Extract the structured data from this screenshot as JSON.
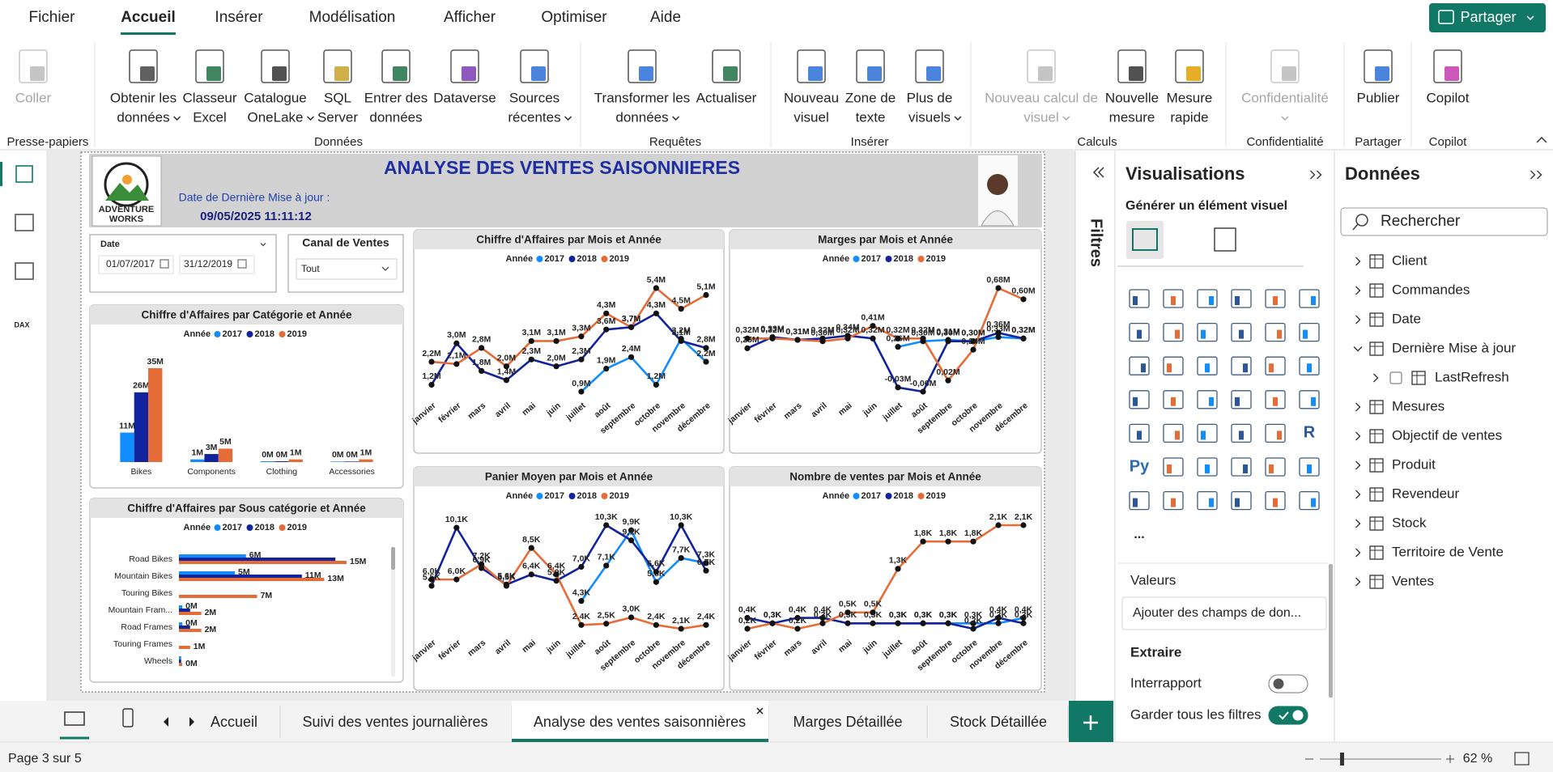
{
  "menu": {
    "items": [
      "Fichier",
      "Accueil",
      "Insérer",
      "Modélisation",
      "Afficher",
      "Optimiser",
      "Aide"
    ],
    "active": 1,
    "share": "Partager"
  },
  "ribbon": {
    "buttons": [
      {
        "lines": [
          "Coller"
        ],
        "disabled": true,
        "dropdown": false
      },
      {
        "lines": [
          "Obtenir les",
          "données"
        ],
        "disabled": false,
        "dropdown": true
      },
      {
        "lines": [
          "Classeur",
          "Excel"
        ],
        "disabled": false,
        "dropdown": false
      },
      {
        "lines": [
          "Catalogue",
          "OneLake"
        ],
        "disabled": false,
        "dropdown": true
      },
      {
        "lines": [
          "SQL",
          "Server"
        ],
        "disabled": false,
        "dropdown": false
      },
      {
        "lines": [
          "Entrer des",
          "données"
        ],
        "disabled": false,
        "dropdown": false
      },
      {
        "lines": [
          "Dataverse"
        ],
        "disabled": false,
        "dropdown": false
      },
      {
        "lines": [
          "Sources",
          "récentes"
        ],
        "disabled": false,
        "dropdown": true
      },
      {
        "lines": [
          "Transformer les",
          "données"
        ],
        "disabled": false,
        "dropdown": true
      },
      {
        "lines": [
          "Actualiser"
        ],
        "disabled": false,
        "dropdown": false
      },
      {
        "lines": [
          "Nouveau",
          "visuel"
        ],
        "disabled": false,
        "dropdown": false
      },
      {
        "lines": [
          "Zone de",
          "texte"
        ],
        "disabled": false,
        "dropdown": false
      },
      {
        "lines": [
          "Plus de",
          "visuels"
        ],
        "disabled": false,
        "dropdown": true
      },
      {
        "lines": [
          "Nouveau calcul de",
          "visuel"
        ],
        "disabled": true,
        "dropdown": true
      },
      {
        "lines": [
          "Nouvelle",
          "mesure"
        ],
        "disabled": false,
        "dropdown": false
      },
      {
        "lines": [
          "Mesure",
          "rapide"
        ],
        "disabled": false,
        "dropdown": false
      },
      {
        "lines": [
          "Confidentialité"
        ],
        "disabled": true,
        "dropdown": true
      },
      {
        "lines": [
          "Publier"
        ],
        "disabled": false,
        "dropdown": false
      },
      {
        "lines": [
          "Copilot"
        ],
        "disabled": false,
        "dropdown": false
      }
    ],
    "groups": [
      "Presse-papiers",
      "Données",
      "Requêtes",
      "Insérer",
      "Calculs",
      "Confidentialité",
      "Partager",
      "Copilot"
    ]
  },
  "nav": {
    "dax": "DAX"
  },
  "report": {
    "title": "ANALYSE DES VENTES SAISONNIERES",
    "logo": [
      "ADVENTURE",
      "WORKS"
    ],
    "update_label": "Date de Dernière Mise à jour :",
    "update_value": "09/05/2025 11:11:12",
    "date_slicer": {
      "title": "Date",
      "from": "01/07/2017",
      "to": "31/12/2019"
    },
    "channel_slicer": {
      "title": "Canal de Ventes",
      "value": "Tout"
    }
  },
  "chart_data": [
    {
      "type": "bar",
      "title": "Chiffre d'Affaires par Catégorie et Année",
      "legend_title": "Année",
      "categories": [
        "Bikes",
        "Components",
        "Clothing",
        "Accessories"
      ],
      "series": [
        {
          "name": "2017",
          "color": "#118DFF",
          "values": [
            11,
            1,
            0.3,
            0.2
          ],
          "value_labels": [
            "11M",
            "1M",
            "0M",
            "0M"
          ]
        },
        {
          "name": "2018",
          "color": "#12239E",
          "values": [
            26,
            3,
            0.3,
            0.2
          ],
          "value_labels": [
            "26M",
            "3M",
            "0M",
            "0M"
          ]
        },
        {
          "name": "2019",
          "color": "#E66C37",
          "values": [
            35,
            5,
            1,
            1
          ],
          "value_labels": [
            "35M",
            "5M",
            "1M",
            "1M"
          ]
        }
      ]
    },
    {
      "type": "hbar",
      "title": "Chiffre d'Affaires par Sous catégorie et Année",
      "legend_title": "Année",
      "categories": [
        "Road Bikes",
        "Mountain Bikes",
        "Touring Bikes",
        "Mountain Fram...",
        "Road Frames",
        "Touring Frames",
        "Wheels"
      ],
      "series": [
        {
          "name": "2017",
          "color": "#118DFF",
          "values": [
            6,
            5,
            null,
            0.3,
            0.3,
            null,
            0.2
          ],
          "value_labels": [
            "6M",
            "5M",
            null,
            "0M",
            "0M",
            null,
            null
          ]
        },
        {
          "name": "2018",
          "color": "#12239E",
          "values": [
            14,
            11,
            null,
            1,
            1,
            null,
            0.2
          ],
          "value_labels": [
            null,
            "11M",
            null,
            null,
            null,
            null,
            null
          ]
        },
        {
          "name": "2019",
          "color": "#E66C37",
          "values": [
            15,
            13,
            7,
            2,
            2,
            1,
            0.3
          ],
          "value_labels": [
            "15M",
            "13M",
            "7M",
            "2M",
            "2M",
            "1M",
            "0M"
          ]
        }
      ]
    },
    {
      "type": "line",
      "title": "Chiffre d'Affaires par Mois et Année",
      "legend_title": "Année",
      "categories": [
        "janvier",
        "février",
        "mars",
        "avril",
        "mai",
        "juin",
        "juillet",
        "août",
        "septembre",
        "octobre",
        "novembre",
        "décembre"
      ],
      "series": [
        {
          "name": "2017",
          "color": "#118DFF",
          "values": [
            null,
            null,
            null,
            null,
            null,
            null,
            0.9,
            1.9,
            2.4,
            1.2,
            3.2,
            2.2
          ],
          "value_labels": [
            null,
            null,
            null,
            null,
            null,
            null,
            "0,9M",
            "1,9M",
            "2,4M",
            "1,2M",
            "3,2M",
            "2,2M"
          ]
        },
        {
          "name": "2018",
          "color": "#12239E",
          "values": [
            1.2,
            3.0,
            1.8,
            1.4,
            2.3,
            2.0,
            2.3,
            3.6,
            3.7,
            4.3,
            3.1,
            2.8
          ],
          "value_labels": [
            "1,2M",
            "3,0M",
            "1,8M",
            "1,4M",
            "2,3M",
            "2,0M",
            "2,3M",
            "3,6M",
            "3,7M",
            "4,3M",
            "3,1M",
            "2,8M"
          ]
        },
        {
          "name": "2019",
          "color": "#E66C37",
          "values": [
            2.2,
            2.1,
            2.8,
            2.0,
            3.1,
            3.1,
            3.3,
            4.3,
            3.7,
            5.4,
            4.5,
            5.1
          ],
          "value_labels": [
            "2,2M",
            "2,1M",
            "2,8M",
            "2,0M",
            "3,1M",
            "3,1M",
            "3,3M",
            "4,3M",
            "3,7M",
            "5,4M",
            "4,5M",
            "5,1M"
          ]
        }
      ]
    },
    {
      "type": "line",
      "title": "Marges par Mois et Année",
      "legend_title": "Année",
      "categories": [
        "janvier",
        "février",
        "mars",
        "avril",
        "mai",
        "juin",
        "juillet",
        "août",
        "septembre",
        "octobre",
        "novembre",
        "décembre"
      ],
      "series": [
        {
          "name": "2017",
          "color": "#118DFF",
          "values": [
            null,
            null,
            null,
            null,
            null,
            null,
            0.26,
            0.3,
            0.31,
            0.3,
            0.33,
            0.32
          ],
          "value_labels": [
            null,
            null,
            null,
            null,
            null,
            null,
            "0,26M",
            "0,30M",
            "0,31M",
            "0,30M",
            "0,33M",
            "0,32M"
          ]
        },
        {
          "name": "2018",
          "color": "#12239E",
          "values": [
            0.25,
            0.33,
            0.31,
            0.32,
            0.34,
            0.32,
            -0.03,
            -0.06,
            0.3,
            0.3,
            0.36,
            0.32
          ],
          "value_labels": [
            "0,25M",
            "0,33M",
            "0,31M",
            "0,32M",
            "0,34M",
            "0,32M",
            "-0,03M",
            "-0,06M",
            "0,30M",
            "0,30M",
            "0,36M",
            "0,32M"
          ]
        },
        {
          "name": "2019",
          "color": "#E66C37",
          "values": [
            0.32,
            0.32,
            0.31,
            0.3,
            0.32,
            0.41,
            0.32,
            0.32,
            0.02,
            0.24,
            0.68,
            0.6
          ],
          "value_labels": [
            "0,32M",
            "0,32M",
            "0,31M",
            "0,30M",
            "0,32M",
            "0,41M",
            "0,32M",
            "0,32M",
            "0,02M",
            "0,24M",
            "0,68M",
            "0,60M"
          ]
        }
      ]
    },
    {
      "type": "line",
      "title": "Panier Moyen par Mois et Année",
      "legend_title": "Année",
      "categories": [
        "janvier",
        "février",
        "mars",
        "avril",
        "mai",
        "juin",
        "juillet",
        "août",
        "septembre",
        "octobre",
        "novembre",
        "décembre"
      ],
      "series": [
        {
          "name": "2017",
          "color": "#118DFF",
          "values": [
            null,
            null,
            null,
            null,
            null,
            null,
            4.3,
            7.1,
            9.9,
            5.8,
            7.7,
            7.3
          ],
          "value_labels": [
            null,
            null,
            null,
            null,
            null,
            null,
            "4,3K",
            "7,1K",
            "9,9K",
            "5,8K",
            "7,7K",
            "7,3K"
          ]
        },
        {
          "name": "2018",
          "color": "#12239E",
          "values": [
            5.5,
            10.1,
            6.9,
            5.6,
            6.4,
            5.9,
            7.0,
            10.3,
            9.1,
            6.6,
            10.3,
            6.7
          ],
          "value_labels": [
            "5,5K",
            "10,1K",
            "6,9K",
            "5,6K",
            "6,4K",
            "5,9K",
            "7,0K",
            "10,3K",
            "9,1K",
            "6,6K",
            "10,3K",
            "6,7K"
          ]
        },
        {
          "name": "2019",
          "color": "#E66C37",
          "values": [
            6.0,
            6.0,
            7.2,
            5.5,
            8.5,
            6.4,
            2.4,
            2.5,
            3.0,
            2.4,
            2.1,
            2.4
          ],
          "value_labels": [
            "6,0K",
            "6,0K",
            "7,2K",
            "5,5K",
            "8,5K",
            "6,4K",
            "2,4K",
            "2,5K",
            "3,0K",
            "2,4K",
            "2,1K",
            "2,4K"
          ]
        }
      ]
    },
    {
      "type": "line",
      "title": "Nombre de ventes par Mois et Année",
      "legend_title": "Année",
      "categories": [
        "janvier",
        "février",
        "mars",
        "avril",
        "mai",
        "juin",
        "juillet",
        "août",
        "septembre",
        "octobre",
        "novembre",
        "décembre"
      ],
      "series": [
        {
          "name": "2017",
          "color": "#118DFF",
          "values": [
            null,
            null,
            null,
            null,
            null,
            null,
            0.3,
            0.3,
            0.3,
            0.3,
            0.3,
            0.4
          ],
          "value_labels": [
            null,
            null,
            null,
            null,
            null,
            null,
            "0,3K",
            "0,3K",
            "0,3K",
            "0,3K",
            "0,3K",
            "0,4K"
          ]
        },
        {
          "name": "2018",
          "color": "#12239E",
          "values": [
            0.4,
            0.3,
            0.4,
            0.4,
            0.3,
            0.3,
            0.3,
            0.3,
            0.3,
            0.2,
            0.4,
            0.3
          ],
          "value_labels": [
            "0,4K",
            "0,3K",
            "0,4K",
            "0,4K",
            "0,3K",
            "0,3K",
            "0,3K",
            "0,3K",
            "0,3K",
            "0,2K",
            "0,4K",
            "0,3K"
          ]
        },
        {
          "name": "2019",
          "color": "#E66C37",
          "values": [
            0.2,
            0.3,
            0.2,
            0.3,
            0.5,
            0.5,
            1.3,
            1.8,
            1.8,
            1.8,
            2.1,
            2.1
          ],
          "value_labels": [
            "0,2K",
            "0,3K",
            "0,2K",
            "0,3K",
            "0,5K",
            "0,5K",
            "1,3K",
            "1,8K",
            "1,8K",
            "1,8K",
            "2,1K",
            "2,1K"
          ]
        }
      ]
    }
  ],
  "filters": {
    "title": "Filtres"
  },
  "visualizations": {
    "title": "Visualisations",
    "subtitle": "Générer un élément visuel",
    "r_visual": "R",
    "python_visual": "Py",
    "more": "...",
    "values_title": "Valeurs",
    "values_placeholder": "Ajouter des champs de don...",
    "drillthrough": "Extraire",
    "cross_report": {
      "label": "Interrapport",
      "on": false
    },
    "keep_filters": {
      "label": "Garder tous les filtres",
      "on": true
    }
  },
  "data_pane": {
    "title": "Données",
    "search": "Rechercher",
    "items": [
      {
        "name": "Client"
      },
      {
        "name": "Commandes"
      },
      {
        "name": "Date"
      },
      {
        "name": "Dernière Mise à jour",
        "fields": [
          "LastRefresh"
        ]
      },
      {
        "name": "Mesures"
      },
      {
        "name": "Objectif de ventes"
      },
      {
        "name": "Produit"
      },
      {
        "name": "Revendeur"
      },
      {
        "name": "Stock"
      },
      {
        "name": "Territoire de Vente"
      },
      {
        "name": "Ventes"
      }
    ]
  },
  "tabs": {
    "pages": [
      "Accueil",
      "Suivi des ventes journalières",
      "Analyse des ventes saisonnières",
      "Marges Détaillée",
      "Stock Détaillée"
    ],
    "active": 2
  },
  "status": {
    "page": "Page 3 sur 5",
    "zoom": "62 %"
  }
}
